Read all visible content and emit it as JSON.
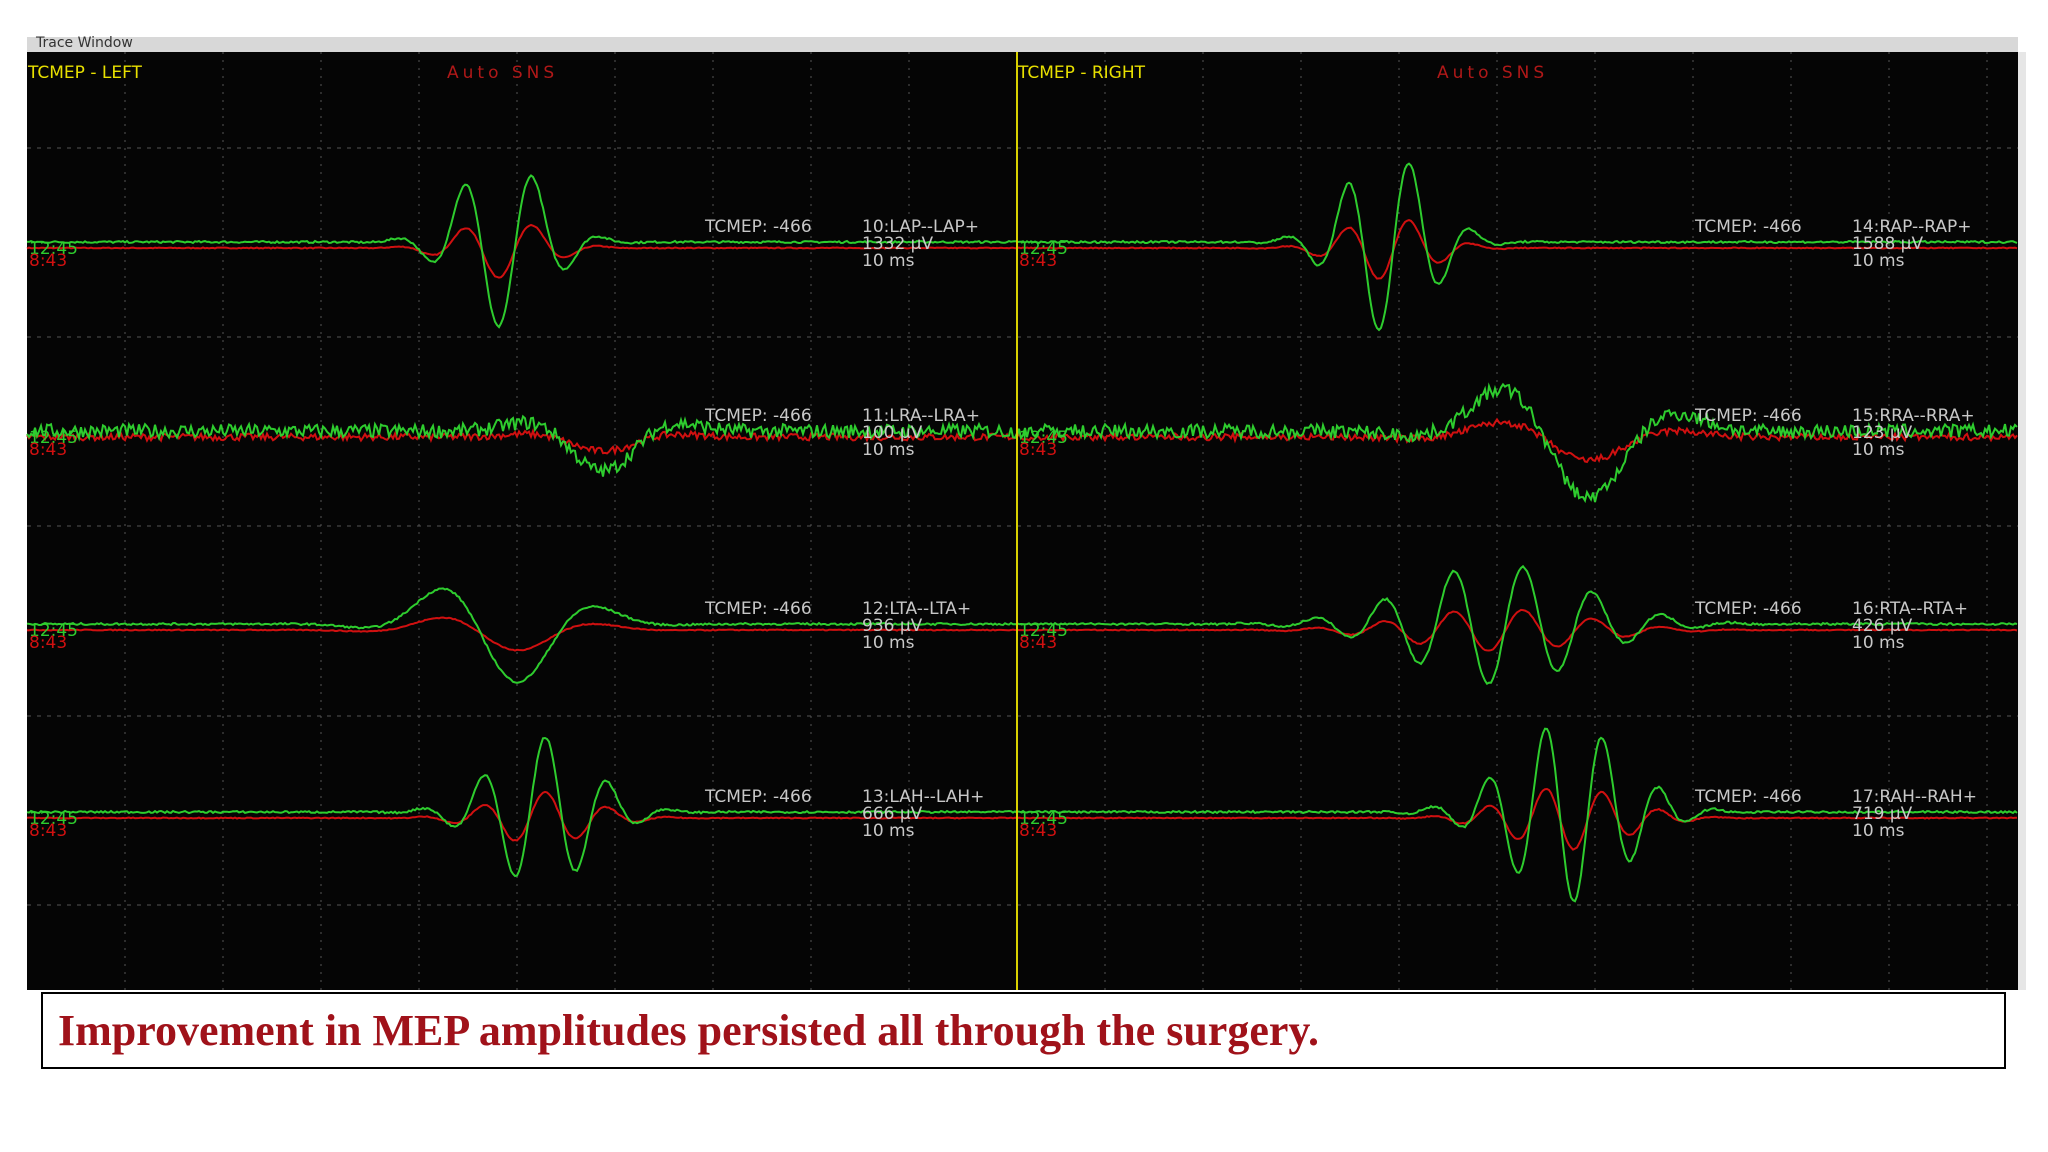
{
  "window_title": "Trace Window",
  "panels": [
    {
      "title": "TCMEP - LEFT",
      "mode": "Auto SNS",
      "channels": [
        {
          "time_green": "12:45",
          "time_red": "8:43",
          "label": "TCMEP: -466",
          "channel": "10:LAP--LAP+",
          "amplitude": "1332 µV",
          "scale": "10 ms"
        },
        {
          "time_green": "12:45",
          "time_red": "8:43",
          "label": "TCMEP: -466",
          "channel": "11:LRA--LRA+",
          "amplitude": "100 µV",
          "scale": "10 ms"
        },
        {
          "time_green": "12:45",
          "time_red": "8:43",
          "label": "TCMEP: -466",
          "channel": "12:LTA--LTA+",
          "amplitude": "936 µV",
          "scale": "10 ms"
        },
        {
          "time_green": "12:45",
          "time_red": "8:43",
          "label": "TCMEP: -466",
          "channel": "13:LAH--LAH+",
          "amplitude": "666 µV",
          "scale": "10 ms"
        }
      ]
    },
    {
      "title": "TCMEP - RIGHT",
      "mode": "Auto SNS",
      "channels": [
        {
          "time_green": "12:45",
          "time_red": "8:43",
          "label": "TCMEP: -466",
          "channel": "14:RAP--RAP+",
          "amplitude": "1588 µV",
          "scale": "10 ms"
        },
        {
          "time_green": "12:45",
          "time_red": "8:43",
          "label": "TCMEP: -466",
          "channel": "15:RRA--RRA+",
          "amplitude": "123 µV",
          "scale": "10 ms"
        },
        {
          "time_green": "12:45",
          "time_red": "8:43",
          "label": "TCMEP: -466",
          "channel": "16:RTA--RTA+",
          "amplitude": "426 µV",
          "scale": "10 ms"
        },
        {
          "time_green": "12:45",
          "time_red": "8:43",
          "label": "TCMEP: -466",
          "channel": "17:RAH--RAH+",
          "amplitude": "719 µV",
          "scale": "10 ms"
        }
      ]
    }
  ],
  "caption": "Improvement in MEP amplitudes persisted all through the surgery."
}
